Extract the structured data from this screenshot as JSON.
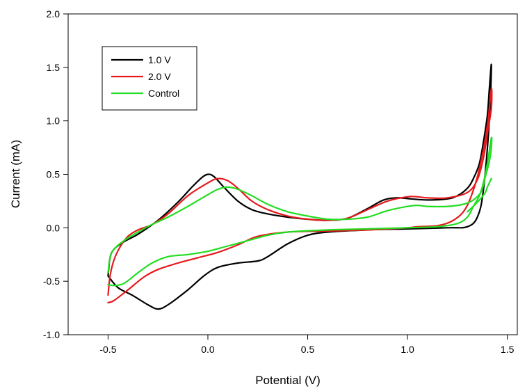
{
  "chart_data": {
    "type": "line",
    "title": "",
    "xlabel": "Potential (V)",
    "ylabel": "Current (mA)",
    "xlim": [
      -0.7,
      1.55
    ],
    "ylim": [
      -1.0,
      2.0
    ],
    "x_ticks": [
      -0.5,
      0.0,
      0.5,
      1.0,
      1.5
    ],
    "x_tick_labels": [
      "-0.5",
      "0.0",
      "0.5",
      "1.0",
      "1.5"
    ],
    "y_ticks": [
      -1.0,
      -0.5,
      0.0,
      0.5,
      1.0,
      1.5,
      2.0
    ],
    "y_tick_labels": [
      "-1.0",
      "-0.5",
      "0.0",
      "0.5",
      "1.0",
      "1.5",
      "2.0"
    ],
    "grid": false,
    "legend_position": "top-left",
    "series": [
      {
        "name": "1.0 V",
        "color": "#000000",
        "points": [
          [
            -0.5,
            -0.45
          ],
          [
            -0.49,
            -0.28
          ],
          [
            -0.47,
            -0.2
          ],
          [
            -0.42,
            -0.13
          ],
          [
            -0.35,
            -0.06
          ],
          [
            -0.25,
            0.07
          ],
          [
            -0.15,
            0.24
          ],
          [
            -0.08,
            0.38
          ],
          [
            -0.03,
            0.47
          ],
          [
            0.0,
            0.5
          ],
          [
            0.03,
            0.48
          ],
          [
            0.08,
            0.38
          ],
          [
            0.15,
            0.25
          ],
          [
            0.22,
            0.17
          ],
          [
            0.3,
            0.13
          ],
          [
            0.4,
            0.1
          ],
          [
            0.5,
            0.08
          ],
          [
            0.6,
            0.07
          ],
          [
            0.7,
            0.09
          ],
          [
            0.8,
            0.18
          ],
          [
            0.88,
            0.26
          ],
          [
            0.95,
            0.28
          ],
          [
            1.02,
            0.27
          ],
          [
            1.1,
            0.26
          ],
          [
            1.2,
            0.27
          ],
          [
            1.25,
            0.3
          ],
          [
            1.3,
            0.37
          ],
          [
            1.33,
            0.46
          ],
          [
            1.36,
            0.6
          ],
          [
            1.38,
            0.8
          ],
          [
            1.4,
            1.05
          ],
          [
            1.41,
            1.3
          ],
          [
            1.42,
            1.52
          ],
          [
            1.41,
            1.0
          ],
          [
            1.38,
            0.35
          ],
          [
            1.35,
            0.1
          ],
          [
            1.3,
            0.01
          ],
          [
            1.2,
            0.0
          ],
          [
            1.0,
            -0.01
          ],
          [
            0.8,
            -0.02
          ],
          [
            0.6,
            -0.04
          ],
          [
            0.5,
            -0.07
          ],
          [
            0.4,
            -0.15
          ],
          [
            0.3,
            -0.27
          ],
          [
            0.25,
            -0.31
          ],
          [
            0.15,
            -0.33
          ],
          [
            0.05,
            -0.37
          ],
          [
            -0.02,
            -0.45
          ],
          [
            -0.1,
            -0.58
          ],
          [
            -0.2,
            -0.72
          ],
          [
            -0.25,
            -0.76
          ],
          [
            -0.3,
            -0.72
          ],
          [
            -0.38,
            -0.63
          ],
          [
            -0.45,
            -0.56
          ],
          [
            -0.5,
            -0.45
          ]
        ]
      },
      {
        "name": "2.0 V",
        "color": "#e41a1c",
        "points": [
          [
            -0.5,
            -0.63
          ],
          [
            -0.49,
            -0.45
          ],
          [
            -0.47,
            -0.3
          ],
          [
            -0.44,
            -0.18
          ],
          [
            -0.4,
            -0.08
          ],
          [
            -0.35,
            -0.02
          ],
          [
            -0.28,
            0.03
          ],
          [
            -0.2,
            0.13
          ],
          [
            -0.1,
            0.3
          ],
          [
            0.0,
            0.42
          ],
          [
            0.05,
            0.46
          ],
          [
            0.1,
            0.44
          ],
          [
            0.15,
            0.37
          ],
          [
            0.22,
            0.25
          ],
          [
            0.3,
            0.17
          ],
          [
            0.4,
            0.11
          ],
          [
            0.5,
            0.08
          ],
          [
            0.6,
            0.07
          ],
          [
            0.7,
            0.09
          ],
          [
            0.8,
            0.17
          ],
          [
            0.9,
            0.25
          ],
          [
            1.0,
            0.29
          ],
          [
            1.05,
            0.29
          ],
          [
            1.1,
            0.28
          ],
          [
            1.2,
            0.28
          ],
          [
            1.3,
            0.33
          ],
          [
            1.35,
            0.45
          ],
          [
            1.38,
            0.65
          ],
          [
            1.4,
            0.88
          ],
          [
            1.42,
            1.12
          ],
          [
            1.42,
            1.3
          ],
          [
            1.4,
            0.95
          ],
          [
            1.36,
            0.55
          ],
          [
            1.32,
            0.3
          ],
          [
            1.28,
            0.15
          ],
          [
            1.22,
            0.06
          ],
          [
            1.15,
            0.02
          ],
          [
            1.05,
            0.01
          ],
          [
            1.0,
            0.0
          ],
          [
            0.8,
            -0.02
          ],
          [
            0.6,
            -0.03
          ],
          [
            0.4,
            -0.04
          ],
          [
            0.25,
            -0.08
          ],
          [
            0.15,
            -0.16
          ],
          [
            0.05,
            -0.23
          ],
          [
            -0.05,
            -0.28
          ],
          [
            -0.15,
            -0.33
          ],
          [
            -0.25,
            -0.39
          ],
          [
            -0.32,
            -0.46
          ],
          [
            -0.4,
            -0.58
          ],
          [
            -0.47,
            -0.68
          ],
          [
            -0.5,
            -0.7
          ]
        ]
      },
      {
        "name": "Control",
        "color": "#22dd22",
        "points": [
          [
            -0.5,
            -0.42
          ],
          [
            -0.49,
            -0.28
          ],
          [
            -0.47,
            -0.2
          ],
          [
            -0.42,
            -0.12
          ],
          [
            -0.35,
            -0.04
          ],
          [
            -0.28,
            0.03
          ],
          [
            -0.2,
            0.1
          ],
          [
            -0.1,
            0.2
          ],
          [
            0.0,
            0.31
          ],
          [
            0.05,
            0.36
          ],
          [
            0.1,
            0.38
          ],
          [
            0.15,
            0.36
          ],
          [
            0.22,
            0.3
          ],
          [
            0.3,
            0.22
          ],
          [
            0.4,
            0.15
          ],
          [
            0.5,
            0.11
          ],
          [
            0.6,
            0.08
          ],
          [
            0.7,
            0.08
          ],
          [
            0.8,
            0.1
          ],
          [
            0.9,
            0.16
          ],
          [
            1.0,
            0.2
          ],
          [
            1.05,
            0.21
          ],
          [
            1.1,
            0.2
          ],
          [
            1.2,
            0.2
          ],
          [
            1.28,
            0.22
          ],
          [
            1.33,
            0.26
          ],
          [
            1.37,
            0.34
          ],
          [
            1.39,
            0.48
          ],
          [
            1.41,
            0.62
          ],
          [
            1.42,
            0.75
          ],
          [
            1.42,
            0.84
          ],
          [
            1.4,
            0.6
          ],
          [
            1.38,
            0.42
          ],
          [
            1.36,
            0.3
          ],
          [
            1.33,
            0.2
          ],
          [
            1.3,
            0.1
          ],
          [
            1.25,
            0.04
          ],
          [
            1.15,
            0.01
          ],
          [
            1.0,
            0.0
          ],
          [
            0.8,
            -0.01
          ],
          [
            0.6,
            -0.02
          ],
          [
            0.4,
            -0.04
          ],
          [
            0.3,
            -0.07
          ],
          [
            0.2,
            -0.12
          ],
          [
            0.1,
            -0.17
          ],
          [
            0.0,
            -0.22
          ],
          [
            -0.1,
            -0.25
          ],
          [
            -0.2,
            -0.27
          ],
          [
            -0.28,
            -0.33
          ],
          [
            -0.35,
            -0.42
          ],
          [
            -0.42,
            -0.52
          ],
          [
            -0.47,
            -0.54
          ],
          [
            -0.5,
            -0.53
          ]
        ]
      },
      {
        "name": "",
        "color": "#22dd22",
        "points": [
          [
            1.3,
            0.15
          ],
          [
            1.34,
            0.22
          ],
          [
            1.37,
            0.28
          ],
          [
            1.39,
            0.33
          ],
          [
            1.4,
            0.38
          ],
          [
            1.42,
            0.46
          ]
        ]
      }
    ]
  }
}
